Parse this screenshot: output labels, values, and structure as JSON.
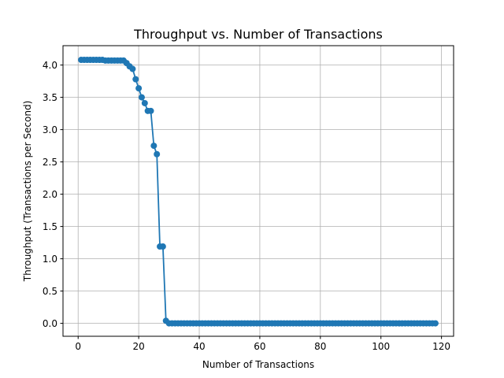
{
  "chart_data": {
    "type": "line",
    "title": "Throughput vs. Number of Transactions",
    "xlabel": "Number of Transactions",
    "ylabel": "Throughput (Transactions per Second)",
    "xlim": [
      -5,
      124
    ],
    "ylim": [
      -0.2,
      4.3
    ],
    "xticks": [
      0,
      20,
      40,
      60,
      80,
      100,
      120
    ],
    "xtick_labels": [
      "0",
      "20",
      "40",
      "60",
      "80",
      "100",
      "120"
    ],
    "yticks": [
      0.0,
      0.5,
      1.0,
      1.5,
      2.0,
      2.5,
      3.0,
      3.5,
      4.0
    ],
    "ytick_labels": [
      "0.0",
      "0.5",
      "1.0",
      "1.5",
      "2.0",
      "2.5",
      "3.0",
      "3.5",
      "4.0"
    ],
    "grid": true,
    "marker": "circle",
    "color": "#1f77b4",
    "series": [
      {
        "name": "",
        "x": [
          1,
          2,
          3,
          4,
          5,
          6,
          7,
          8,
          9,
          10,
          11,
          12,
          13,
          14,
          15,
          16,
          17,
          18,
          19,
          20,
          21,
          22,
          23,
          24,
          25,
          26,
          27,
          28,
          29,
          30,
          31,
          32,
          33,
          34,
          35,
          36,
          37,
          38,
          39,
          40,
          41,
          42,
          43,
          44,
          45,
          46,
          47,
          48,
          49,
          50,
          51,
          52,
          53,
          54,
          55,
          56,
          57,
          58,
          59,
          60,
          61,
          62,
          63,
          64,
          65,
          66,
          67,
          68,
          69,
          70,
          71,
          72,
          73,
          74,
          75,
          76,
          77,
          78,
          79,
          80,
          81,
          82,
          83,
          84,
          85,
          86,
          87,
          88,
          89,
          90,
          91,
          92,
          93,
          94,
          95,
          96,
          97,
          98,
          99,
          100,
          101,
          102,
          103,
          104,
          105,
          106,
          107,
          108,
          109,
          110,
          111,
          112,
          113,
          114,
          115,
          116,
          117,
          118
        ],
        "y": [
          4.08,
          4.08,
          4.08,
          4.08,
          4.08,
          4.08,
          4.08,
          4.08,
          4.07,
          4.07,
          4.07,
          4.07,
          4.07,
          4.07,
          4.07,
          4.03,
          3.98,
          3.94,
          3.78,
          3.64,
          3.5,
          3.41,
          3.29,
          3.29,
          2.75,
          2.62,
          1.19,
          1.19,
          0.04,
          0,
          0,
          0,
          0,
          0,
          0,
          0,
          0,
          0,
          0,
          0,
          0,
          0,
          0,
          0,
          0,
          0,
          0,
          0,
          0,
          0,
          0,
          0,
          0,
          0,
          0,
          0,
          0,
          0,
          0,
          0,
          0,
          0,
          0,
          0,
          0,
          0,
          0,
          0,
          0,
          0,
          0,
          0,
          0,
          0,
          0,
          0,
          0,
          0,
          0,
          0,
          0,
          0,
          0,
          0,
          0,
          0,
          0,
          0,
          0,
          0,
          0,
          0,
          0,
          0,
          0,
          0,
          0,
          0,
          0,
          0,
          0,
          0,
          0,
          0,
          0,
          0,
          0,
          0,
          0,
          0,
          0,
          0,
          0,
          0,
          0,
          0,
          0,
          0
        ]
      }
    ]
  }
}
